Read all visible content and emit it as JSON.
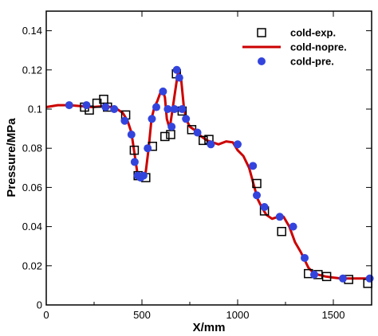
{
  "chart_data": {
    "type": "line",
    "title": "",
    "xlabel": "X/mm",
    "ylabel": "Pressure/MPa",
    "xlim": [
      0,
      1700
    ],
    "ylim": [
      0,
      0.15
    ],
    "xticks": [
      0,
      500,
      1000,
      1500
    ],
    "yticks": [
      0,
      0.02,
      0.04,
      0.06,
      0.08,
      0.1,
      0.12,
      0.14
    ],
    "ytick_labels": [
      "0",
      "0.02",
      "0.04",
      "0.06",
      "0.08",
      "0.1",
      "0.12",
      "0.14"
    ],
    "grid": false,
    "legend_position": "top-right",
    "series": [
      {
        "name": "cold-exp.",
        "kind": "scatter",
        "marker": "hollow-square",
        "color": "#000000",
        "x": [
          200,
          225,
          265,
          300,
          320,
          415,
          460,
          480,
          520,
          555,
          620,
          650,
          680,
          710,
          760,
          820,
          850,
          1100,
          1140,
          1230,
          1370,
          1420,
          1465,
          1580,
          1680
        ],
        "y": [
          0.101,
          0.0995,
          0.103,
          0.105,
          0.101,
          0.097,
          0.079,
          0.066,
          0.065,
          0.081,
          0.086,
          0.087,
          0.118,
          0.099,
          0.0895,
          0.084,
          0.0845,
          0.062,
          0.048,
          0.0375,
          0.016,
          0.0155,
          0.0145,
          0.013,
          0.011
        ]
      },
      {
        "name": "cold-nopre.",
        "kind": "line",
        "color": "#cc0000",
        "x": [
          0,
          60,
          120,
          180,
          240,
          300,
          340,
          370,
          400,
          425,
          445,
          460,
          475,
          490,
          505,
          520,
          535,
          550,
          565,
          580,
          595,
          610,
          620,
          630,
          645,
          660,
          675,
          690,
          705,
          720,
          735,
          750,
          780,
          810,
          840,
          870,
          900,
          940,
          975,
          1000,
          1030,
          1060,
          1085,
          1105,
          1125,
          1150,
          1180,
          1210,
          1240,
          1270,
          1300,
          1330,
          1355,
          1370,
          1390,
          1420,
          1460,
          1500,
          1540,
          1580,
          1620,
          1660,
          1700
        ],
        "y": [
          0.101,
          0.102,
          0.102,
          0.1015,
          0.101,
          0.1015,
          0.101,
          0.1,
          0.098,
          0.094,
          0.088,
          0.078,
          0.068,
          0.065,
          0.065,
          0.068,
          0.08,
          0.095,
          0.101,
          0.104,
          0.108,
          0.109,
          0.106,
          0.095,
          0.09,
          0.1,
          0.11,
          0.12,
          0.115,
          0.1,
          0.094,
          0.091,
          0.089,
          0.086,
          0.084,
          0.083,
          0.082,
          0.0835,
          0.083,
          0.079,
          0.076,
          0.07,
          0.061,
          0.054,
          0.05,
          0.046,
          0.044,
          0.045,
          0.045,
          0.04,
          0.032,
          0.027,
          0.022,
          0.019,
          0.017,
          0.0155,
          0.0145,
          0.014,
          0.0135,
          0.0135,
          0.0135,
          0.0135,
          0.0135
        ]
      },
      {
        "name": "cold-pre.",
        "kind": "scatter",
        "marker": "filled-circle",
        "color": "#3344dd",
        "x": [
          120,
          210,
          310,
          355,
          410,
          445,
          462,
          478,
          493,
          508,
          530,
          552,
          575,
          610,
          635,
          655,
          670,
          682,
          695,
          710,
          730,
          790,
          860,
          1000,
          1080,
          1100,
          1140,
          1220,
          1290,
          1350,
          1400,
          1550,
          1690
        ],
        "y": [
          0.102,
          0.102,
          0.101,
          0.1,
          0.094,
          0.087,
          0.073,
          0.066,
          0.065,
          0.066,
          0.08,
          0.095,
          0.101,
          0.109,
          0.1,
          0.091,
          0.1,
          0.12,
          0.116,
          0.1,
          0.095,
          0.088,
          0.082,
          0.082,
          0.071,
          0.056,
          0.05,
          0.045,
          0.04,
          0.024,
          0.0155,
          0.0135,
          0.0135
        ]
      }
    ]
  }
}
